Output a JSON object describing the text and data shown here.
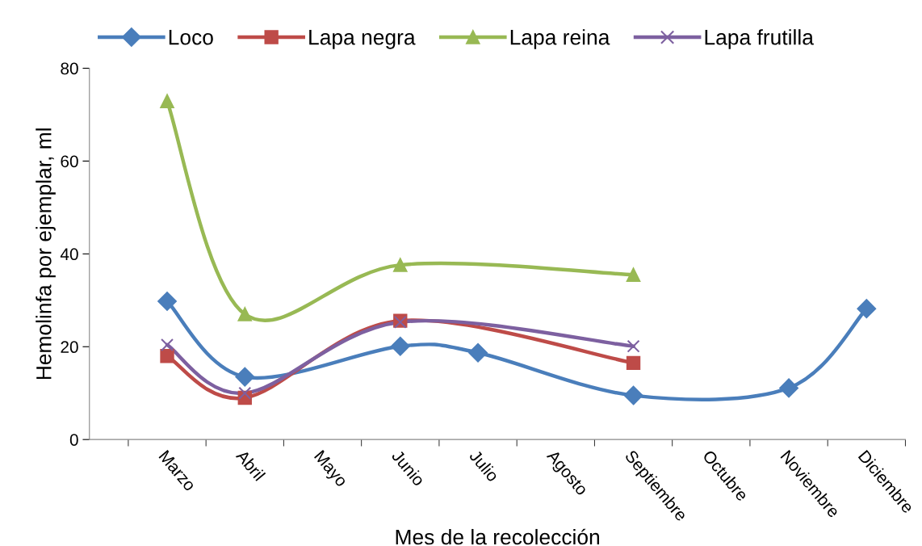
{
  "chart_data": {
    "type": "line",
    "xlabel": "Mes de la recolección",
    "ylabel": "Hemolinfa por ejemplar, ml",
    "categories": [
      "Marzo",
      "Abril",
      "Mayo",
      "Junio",
      "Julio",
      "Agosto",
      "Septiembre",
      "Octubre",
      "Noviembre",
      "Diciembre"
    ],
    "series": [
      {
        "name": "Loco",
        "color": "#4a7ebb",
        "marker": "diamond",
        "values": [
          29.8,
          13.5,
          null,
          20.1,
          18.7,
          null,
          9.5,
          null,
          11.1,
          28.2
        ]
      },
      {
        "name": "Lapa negra",
        "color": "#be4b48",
        "marker": "square",
        "values": [
          18.0,
          9.0,
          null,
          25.6,
          null,
          null,
          16.5,
          null,
          null,
          null
        ]
      },
      {
        "name": "Lapa reina",
        "color": "#98b954",
        "marker": "triangle",
        "values": [
          72.9,
          27.0,
          null,
          37.6,
          null,
          null,
          35.5,
          null,
          null,
          null
        ]
      },
      {
        "name": "Lapa frutilla",
        "color": "#7d60a0",
        "marker": "cross",
        "values": [
          20.4,
          10.0,
          null,
          25.3,
          null,
          null,
          20.1,
          null,
          null,
          null
        ]
      }
    ],
    "ylim": [
      0,
      80
    ],
    "yticks": [
      0,
      20,
      40,
      60,
      80
    ],
    "grid": false,
    "legend": "top",
    "line_style": "solid"
  }
}
